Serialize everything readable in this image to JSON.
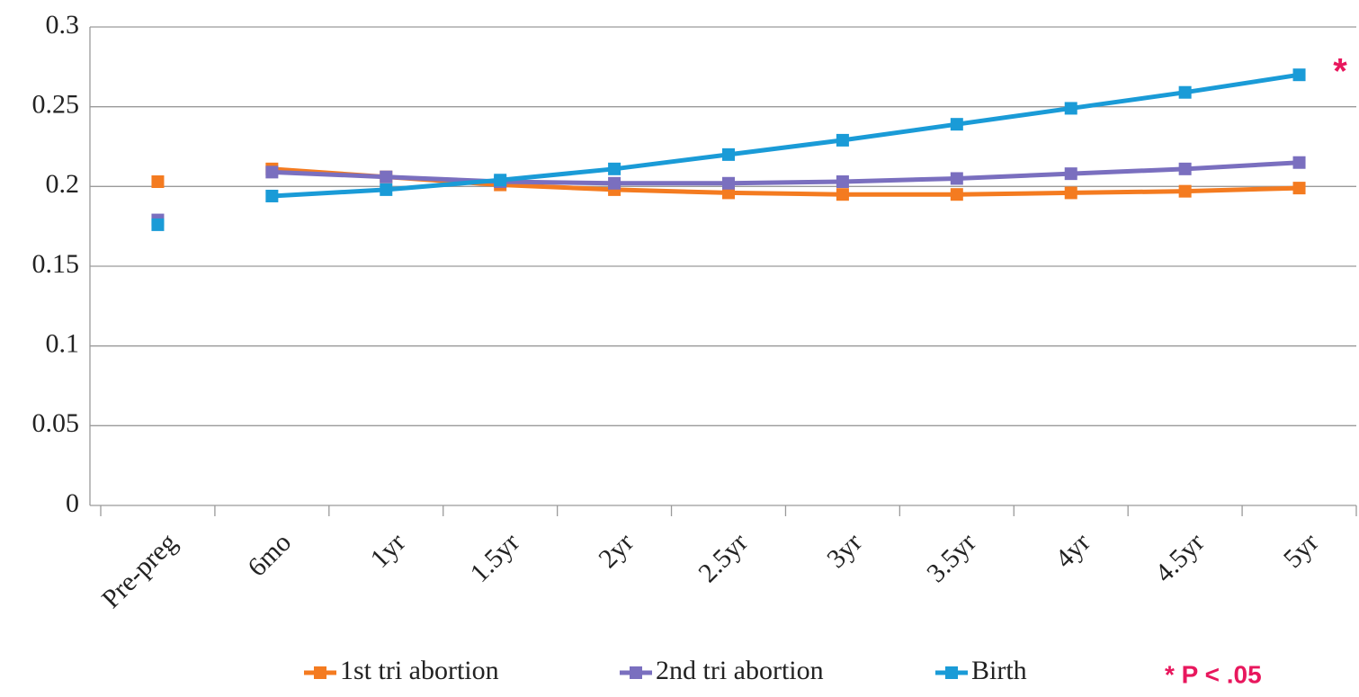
{
  "chart_data": {
    "type": "line",
    "categories": [
      "Pre-preg",
      "6mo",
      "1yr",
      "1.5yr",
      "2yr",
      "2.5yr",
      "3yr",
      "3.5yr",
      "4yr",
      "4.5yr",
      "5yr"
    ],
    "series": [
      {
        "name": "1st tri abortion",
        "color": "#f47b20",
        "values": [
          0.203,
          0.211,
          0.206,
          0.201,
          0.198,
          0.196,
          0.195,
          0.195,
          0.196,
          0.197,
          0.199
        ]
      },
      {
        "name": "2nd tri abortion",
        "color": "#7a6fbf",
        "values": [
          0.179,
          0.209,
          0.206,
          0.203,
          0.202,
          0.202,
          0.203,
          0.205,
          0.208,
          0.211,
          0.215
        ]
      },
      {
        "name": "Birth",
        "color": "#1a9bd7",
        "values": [
          0.176,
          0.194,
          0.198,
          0.204,
          0.211,
          0.22,
          0.229,
          0.239,
          0.249,
          0.259,
          0.27
        ]
      }
    ],
    "ylim": [
      0,
      0.3
    ],
    "yticks": [
      0,
      0.05,
      0.1,
      0.15,
      0.2,
      0.25,
      0.3
    ],
    "grid": true,
    "annotations": [
      "*",
      "* P < .05"
    ],
    "annotation_color": "#e8175d"
  }
}
